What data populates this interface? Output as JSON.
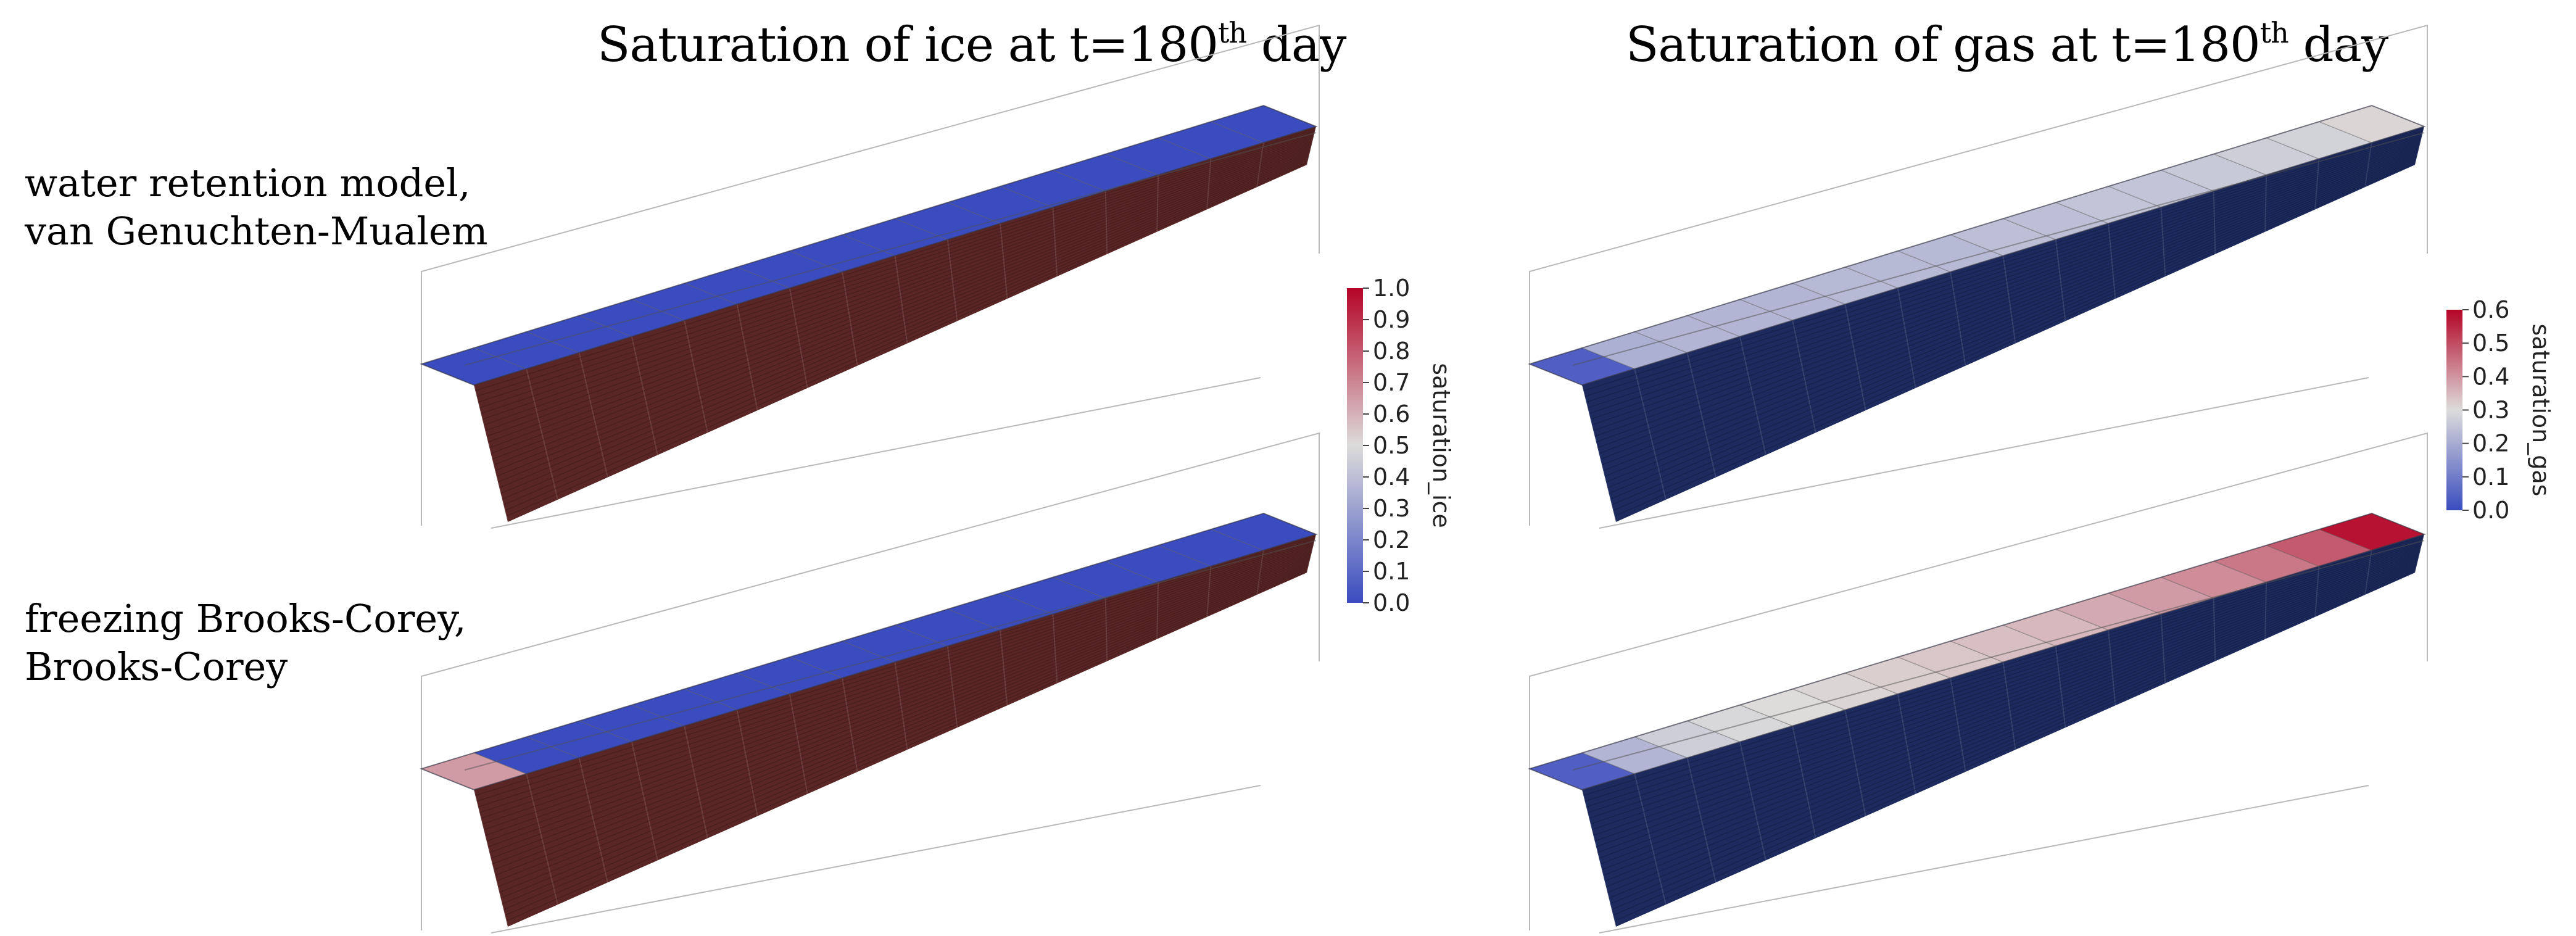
{
  "titles": {
    "left": {
      "prefix": "Saturation of ice at t=180",
      "sup": "th",
      "suffix": " day"
    },
    "right": {
      "prefix": "Saturation of gas at t=180",
      "sup": "th",
      "suffix": " day"
    }
  },
  "rows": [
    {
      "label_line1": "water retention model,",
      "label_line2": "van Genuchten-Mualem"
    },
    {
      "label_line1": "freezing Brooks-Corey,",
      "label_line2": "Brooks-Corey"
    }
  ],
  "colorbars": {
    "ice": {
      "label": "saturation_ice",
      "ticks": [
        "1.0",
        "0.9",
        "0.8",
        "0.7",
        "0.6",
        "0.5",
        "0.4",
        "0.3",
        "0.2",
        "0.1",
        "0.0"
      ],
      "min": 0.0,
      "max": 1.0
    },
    "gas": {
      "label": "saturation_gas",
      "ticks": [
        "0.6",
        "0.5",
        "0.4",
        "0.3",
        "0.2",
        "0.1",
        "0.0"
      ],
      "min": 0.0,
      "max": 0.6
    }
  },
  "colors": {
    "low": "#3b4cc0",
    "mid": "#dddcdb",
    "high": "#b40426",
    "side": "#5a2525",
    "side_gas": "#1c2a5e"
  },
  "fields": {
    "ice_vgm": [
      0.0,
      0.0,
      0.0,
      0.0,
      0.0,
      0.0,
      0.0,
      0.0,
      0.0,
      0.0,
      0.0,
      0.0,
      0.0,
      0.0,
      0.0,
      0.0
    ],
    "ice_bc": [
      0.65,
      0.0,
      0.0,
      0.0,
      0.0,
      0.0,
      0.0,
      0.0,
      0.0,
      0.0,
      0.0,
      0.0,
      0.0,
      0.0,
      0.0,
      0.0
    ],
    "gas_vgm": [
      0.04,
      0.21,
      0.22,
      0.22,
      0.22,
      0.23,
      0.23,
      0.23,
      0.24,
      0.24,
      0.25,
      0.25,
      0.26,
      0.27,
      0.28,
      0.31
    ],
    "gas_bc": [
      0.04,
      0.22,
      0.27,
      0.29,
      0.3,
      0.31,
      0.32,
      0.33,
      0.34,
      0.35,
      0.37,
      0.39,
      0.41,
      0.44,
      0.48,
      0.58
    ]
  }
}
